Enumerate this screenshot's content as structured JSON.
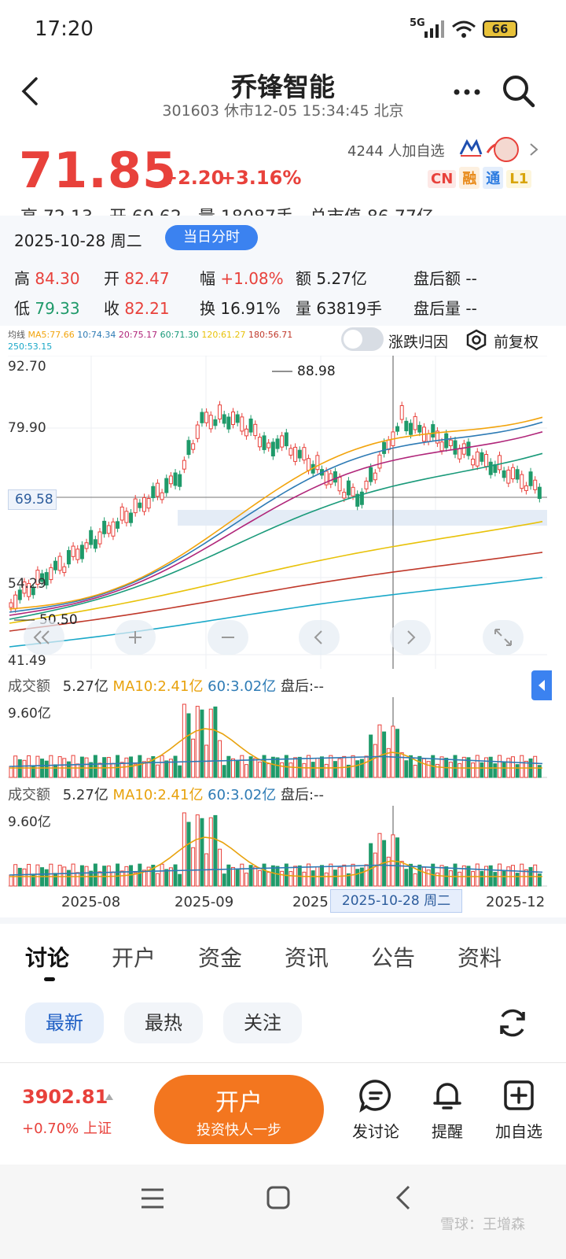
{
  "status_bar": {
    "time": "17:20",
    "network": "5G",
    "battery": "66"
  },
  "header": {
    "title": "乔锋智能",
    "subtitle": "301603 休市12-05 15:34:45 北京"
  },
  "quote": {
    "price": "71.85",
    "change": "+2.20",
    "change_pct": "+3.16%",
    "watchers": "4244 人加自选",
    "tags": [
      "CN",
      "融",
      "通",
      "L1"
    ],
    "partial_row": "高 72.13   开 69.62   量 18087手   总市值 86.77亿"
  },
  "day_panel": {
    "date": "2025-10-28 周二",
    "mode_button": "当日分时",
    "row1": [
      {
        "label": "高",
        "value": "84.30",
        "color": "red"
      },
      {
        "label": "开",
        "value": "82.47",
        "color": "red"
      },
      {
        "label": "幅",
        "value": "+1.08%",
        "color": "red"
      },
      {
        "label": "额",
        "value": "5.27亿",
        "color": "dark"
      },
      {
        "label": "盘后额",
        "value": "--",
        "color": "dark"
      }
    ],
    "row2": [
      {
        "label": "低",
        "value": "79.33",
        "color": "green"
      },
      {
        "label": "收",
        "value": "82.21",
        "color": "red"
      },
      {
        "label": "换",
        "value": "16.91%",
        "color": "dark"
      },
      {
        "label": "量",
        "value": "63819手",
        "color": "dark"
      },
      {
        "label": "盘后量",
        "value": "--",
        "color": "dark"
      }
    ]
  },
  "ma_legend": {
    "label": "均线",
    "items": [
      {
        "text": "MA5:77.66",
        "color": "#f2a40d"
      },
      {
        "text": "10:74.34",
        "color": "#2e7bb5"
      },
      {
        "text": "20:75.17",
        "color": "#b0267a"
      },
      {
        "text": "60:71.30",
        "color": "#1a9a7a"
      },
      {
        "text": "120:61.27",
        "color": "#e8c20a"
      },
      {
        "text": "180:56.71",
        "color": "#c0392b"
      },
      {
        "text": "250:53.15",
        "color": "#1aa8c8"
      }
    ],
    "toggle_label": "涨跌归因",
    "adjust_label": "前复权"
  },
  "chart_data": {
    "type": "candlestick",
    "y_labels": [
      "92.70",
      "79.90",
      "69.58",
      "54.29",
      "41.49"
    ],
    "max_label": "88.98",
    "min_label": "50.50",
    "current_price": "69.58",
    "x_labels": [
      "2025-08",
      "2025-09",
      "2025",
      "2025-12"
    ],
    "cursor_label": "2025-10-28 周二",
    "ylim": [
      41.49,
      92.7
    ]
  },
  "volume_panels": [
    {
      "label": "成交额",
      "value": "5.27亿",
      "ma10": "MA10:2.41亿",
      "ma60": "60:3.02亿",
      "after": "盘后:--",
      "max": "9.60亿"
    },
    {
      "label": "成交额",
      "value": "5.27亿",
      "ma10": "MA10:2.41亿",
      "ma60": "60:3.02亿",
      "after": "盘后:--",
      "max": "9.60亿"
    }
  ],
  "tabs": [
    "讨论",
    "开户",
    "资金",
    "资讯",
    "公告",
    "资料"
  ],
  "filters": [
    "最新",
    "最热",
    "关注"
  ],
  "bottom_bar": {
    "index_value": "3902.81",
    "index_change": "+0.70% 上证",
    "cta_title": "开户",
    "cta_sub": "投资快人一步",
    "actions": [
      "发讨论",
      "提醒",
      "加自选"
    ]
  },
  "watermark": "雪球：王增森"
}
